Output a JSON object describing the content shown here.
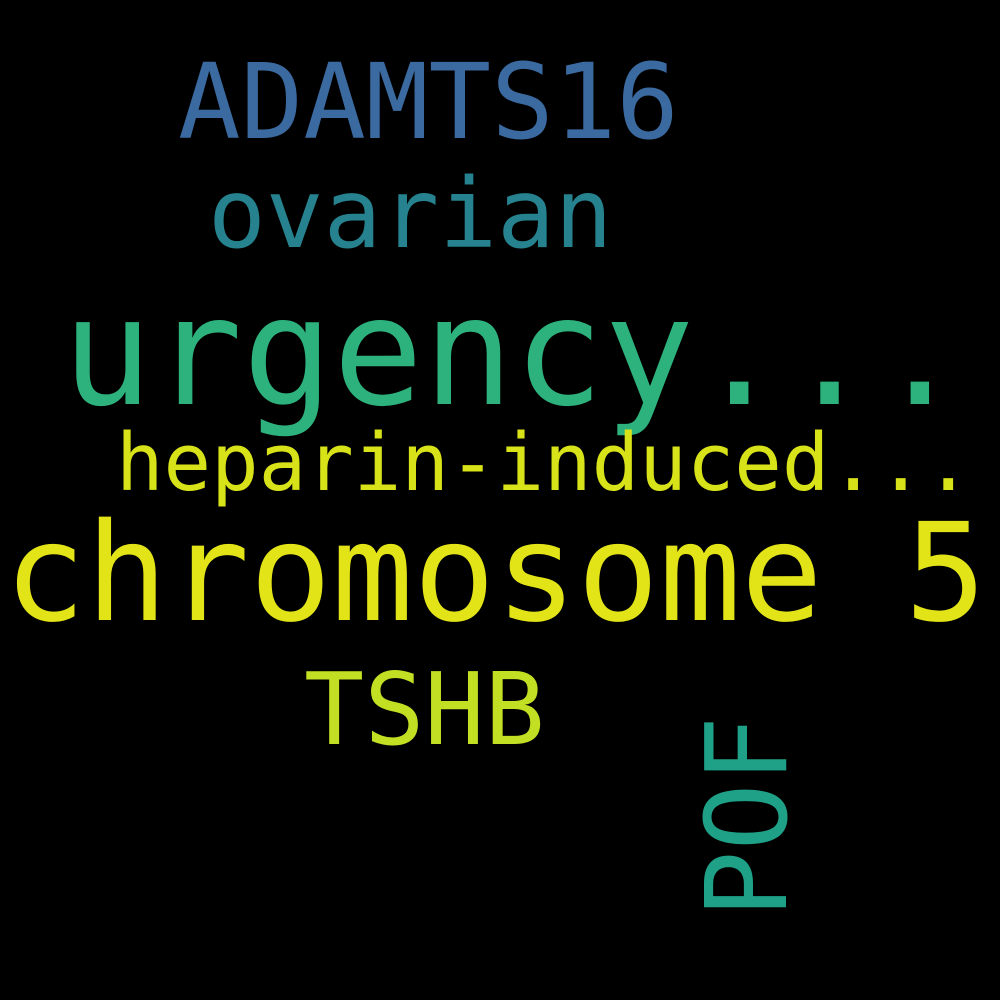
{
  "background_color": "#000000",
  "words": [
    {
      "text": "ADAMTS16",
      "color": "#3b6aa0",
      "orientation": "horizontal"
    },
    {
      "text": "ovarian",
      "color": "#26828e",
      "orientation": "horizontal"
    },
    {
      "text": "urgency...",
      "color": "#2db27d",
      "orientation": "horizontal"
    },
    {
      "text": "heparin-induced...",
      "color": "#d8e219",
      "orientation": "horizontal"
    },
    {
      "text": "chromosome 5",
      "color": "#e2e418",
      "orientation": "horizontal"
    },
    {
      "text": "TSHB",
      "color": "#c2df23",
      "orientation": "horizontal"
    },
    {
      "text": "POF",
      "color": "#1fa187",
      "orientation": "vertical"
    }
  ]
}
